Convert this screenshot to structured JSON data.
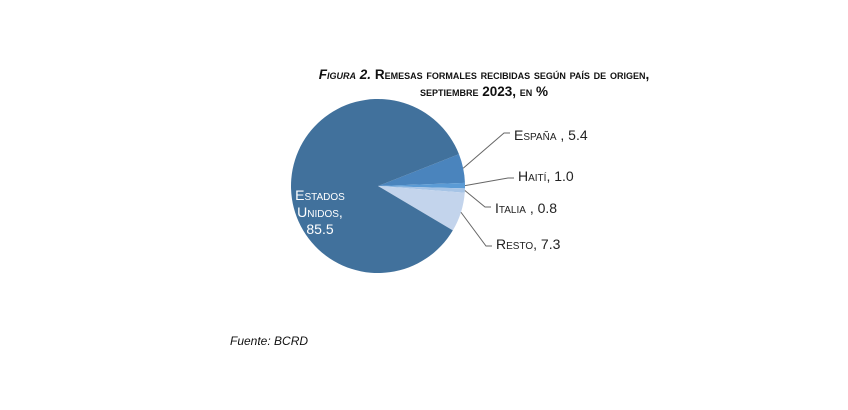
{
  "chart_data": {
    "type": "pie",
    "title_prefix": "Figura 2.",
    "title": "Remesas formales recibidas según país de origen,",
    "subtitle": "septiembre 2023, en %",
    "slices": [
      {
        "label": "España",
        "value": 5.4,
        "text": "España , 5.4",
        "color": "#4a84bd"
      },
      {
        "label": "Haití",
        "value": 1.0,
        "text": "Haití, 1.0",
        "color": "#5b9bd5"
      },
      {
        "label": "Italia",
        "value": 0.8,
        "text": "Italia , 0.8",
        "color": "#a6c4e6"
      },
      {
        "label": "Resto",
        "value": 7.3,
        "text": "Resto, 7.3",
        "color": "#c3d4ec"
      },
      {
        "label": "Estados Unidos",
        "value": 85.5,
        "text_lines": [
          "Estados",
          "Unidos,",
          "85.5"
        ],
        "color": "#41719c"
      }
    ],
    "source": "Fuente: BCRD"
  }
}
